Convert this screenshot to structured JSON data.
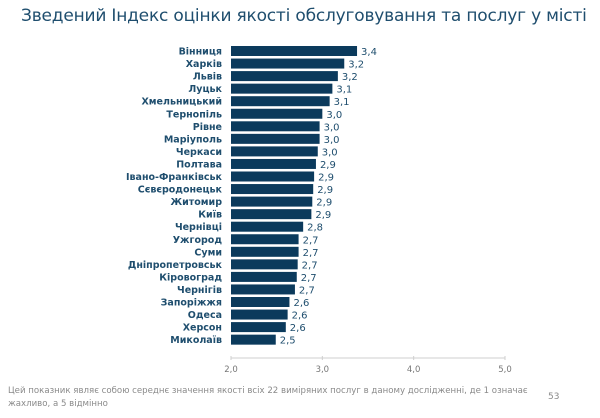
{
  "title": "Зведений Індекс оцінки якості обслуговування та послуг у місті",
  "footnote": "Цей показник являє собою середнє значення якості всіх 22 виміряних послуг в даному дослідженні, де 1 означає жахливо, а 5 відмінно",
  "page_number": "53",
  "chart_data": {
    "type": "bar",
    "orientation": "horizontal",
    "title": "Зведений Індекс оцінки якості обслуговування та послуг у місті",
    "categories": [
      "Вінниця",
      "Харків",
      "Львів",
      "Луцьк",
      "Хмельницький",
      "Тернопіль",
      "Рівне",
      "Маріуполь",
      "Черкаси",
      "Полтава",
      "Івано-Франківськ",
      "Сєвєродонецьк",
      "Житомир",
      "Київ",
      "Чернівці",
      "Ужгород",
      "Суми",
      "Дніпропетровськ",
      "Кіровоград",
      "Чернігів",
      "Запоріжжя",
      "Одеса",
      "Херсон",
      "Миколаїв"
    ],
    "values": [
      3.38,
      3.24,
      3.17,
      3.11,
      3.08,
      3.0,
      2.97,
      2.97,
      2.95,
      2.93,
      2.91,
      2.9,
      2.89,
      2.88,
      2.79,
      2.74,
      2.74,
      2.73,
      2.72,
      2.7,
      2.64,
      2.62,
      2.6,
      2.49
    ],
    "data_labels": [
      "3,4",
      "3,2",
      "3,2",
      "3,1",
      "3,1",
      "3,0",
      "3,0",
      "3,0",
      "3,0",
      "2,9",
      "2,9",
      "2,9",
      "2,9",
      "2,9",
      "2,8",
      "2,7",
      "2,7",
      "2,7",
      "2,7",
      "2,7",
      "2,6",
      "2,6",
      "2,6",
      "2,5"
    ],
    "xlim": [
      2.0,
      5.0
    ],
    "xticks": [
      "2,0",
      "3,0",
      "4,0",
      "5,0"
    ],
    "xlabel": "",
    "ylabel": "",
    "grid": false,
    "bar_color": "#0b3a5c"
  }
}
